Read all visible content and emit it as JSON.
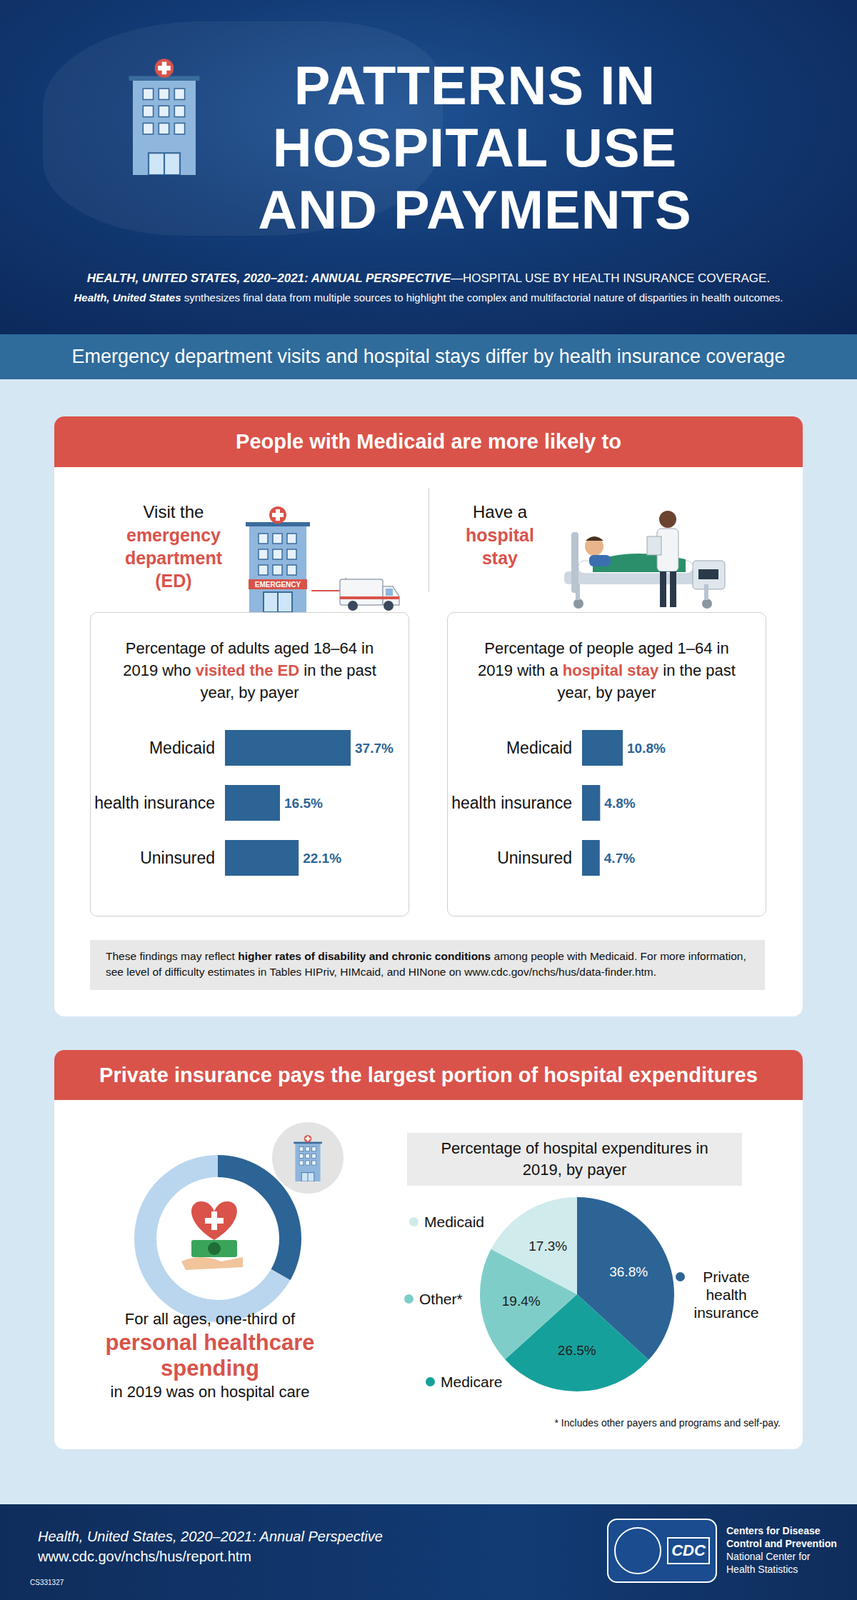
{
  "header": {
    "title_lines": [
      "PATTERNS IN",
      "HOSPITAL USE",
      "AND PAYMENTS"
    ],
    "subtitle": {
      "lead": "HEALTH, UNITED STATES, 2020–2021: ANNUAL PERSPECTIVE",
      "text": "—HOSPITAL USE BY HEALTH INSURANCE COVERAGE."
    },
    "description": {
      "lead": "Health, United States",
      "text": " synthesizes final data from multiple sources to highlight the complex and multifactorial nature of disparities in health outcomes."
    }
  },
  "banner": "Emergency department visits and hospital stays differ by health insurance coverage",
  "section1": {
    "heading": "People with Medicaid are more likely to",
    "left_heading": {
      "text": "Visit the",
      "highlight": "emergency department (ED)"
    },
    "right_heading": {
      "text": "Have a",
      "highlight": "hospital stay"
    },
    "icon_text": "EMERGENCY",
    "note": {
      "before": "These findings may reflect ",
      "bold": "higher rates of disability and chronic conditions",
      "after": " among people with Medicaid. For more information, see level of difficulty estimates in Tables HIPriv, HIMcaid, and HINone on www.cdc.gov/nchs/hus/data-finder.htm."
    }
  },
  "section2": {
    "heading": "Private insurance pays the largest portion of hospital expenditures",
    "donut_text": {
      "before": "For all ages, one-third of",
      "highlight": "personal healthcare spending",
      "after": "in 2019 was on hospital care"
    },
    "footnote": "* Includes other payers and programs and self-pay."
  },
  "footer": {
    "title": "Health, United States, 2020–2021: Annual Perspective",
    "url": "www.cdc.gov/nchs/hus/report.htm",
    "code": "CS331327",
    "logo_text": "CDC",
    "org_lines": [
      "Centers for Disease",
      "Control and Prevention",
      "National Center for",
      "Health Statistics"
    ]
  },
  "chart_data": [
    {
      "type": "bar",
      "orientation": "horizontal",
      "title": "Percentage of adults aged 18–64 in 2019 who visited the ED in the past year, by payer",
      "title_highlight": "visited the ED",
      "categories": [
        "Medicaid",
        "Private health insurance",
        "Uninsured"
      ],
      "values": [
        37.7,
        16.5,
        22.1
      ],
      "value_labels": [
        "37.7%",
        "16.5%",
        "22.1%"
      ],
      "color": "#2c6496",
      "data_labels": true,
      "tick_labels": "y"
    },
    {
      "type": "bar",
      "orientation": "horizontal",
      "title": "Percentage of people aged 1–64 in 2019 with a hospital stay in the past year, by payer",
      "title_highlight": "hospital stay",
      "categories": [
        "Medicaid",
        "Private health insurance",
        "Uninsured"
      ],
      "values": [
        10.8,
        4.8,
        4.7
      ],
      "value_labels": [
        "10.8%",
        "4.8%",
        "4.7%"
      ],
      "color": "#2c6496",
      "data_labels": true,
      "tick_labels": "y"
    },
    {
      "type": "pie",
      "title": "Percentage of hospital expenditures in 2019, by payer",
      "categories": [
        "Private health insurance",
        "Medicare",
        "Other*",
        "Medicaid"
      ],
      "values": [
        36.8,
        26.5,
        19.4,
        17.3
      ],
      "value_labels": [
        "36.8%",
        "26.5%",
        "19.4%",
        "17.3%"
      ],
      "colors": [
        "#2c6496",
        "#16a09b",
        "#7fcdc9",
        "#d0ebec"
      ],
      "data_labels": true
    },
    {
      "type": "donut",
      "values": [
        33.3,
        66.7
      ],
      "colors": [
        "#2c6496",
        "#b9d6ee"
      ]
    }
  ]
}
